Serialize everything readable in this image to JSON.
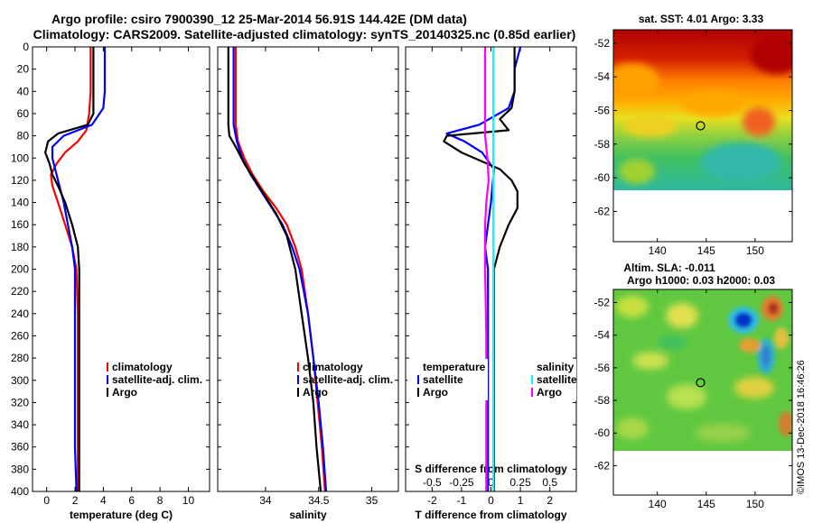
{
  "title_line1": "Argo profile: csiro 7900390_12 25-Mar-2014 56.91S 144.42E (DM data)",
  "title_line2": "Climatology: CARS2009. Satellite-adjusted climatology: synTS_20140325.nc (0.85d earlier)",
  "credit": "©IMOS 13-Dec-2018 16:46:26",
  "colors": {
    "climatology": "#ff0000",
    "satellite": "#0000ff",
    "argo": "#000000",
    "sat_salinity": "#00ffff",
    "argo_salinity": "#ff00ff"
  },
  "depth_ticks": [
    "0",
    "20",
    "40",
    "60",
    "80",
    "100",
    "120",
    "140",
    "160",
    "180",
    "200",
    "220",
    "240",
    "260",
    "280",
    "300",
    "320",
    "340",
    "360",
    "380",
    "400"
  ],
  "chart_data": [
    {
      "type": "line",
      "name": "temperature-panel",
      "xlabel": "temperature (deg C)",
      "ylabel": "depth",
      "xlim": [
        -1,
        11.5
      ],
      "ylim": [
        0,
        400
      ],
      "xticks": [
        "0",
        "2",
        "4",
        "6",
        "8",
        "10"
      ],
      "xtick_values": [
        0,
        2,
        4,
        6,
        8,
        10
      ],
      "legend": [
        "climatology",
        "satellite-adj. clim.",
        "Argo"
      ],
      "series": [
        {
          "name": "climatology",
          "color": "#ff0000",
          "points": [
            [
              3.1,
              0
            ],
            [
              3.1,
              20
            ],
            [
              3.1,
              40
            ],
            [
              3.0,
              60
            ],
            [
              2.8,
              75
            ],
            [
              2.2,
              85
            ],
            [
              1.3,
              95
            ],
            [
              0.7,
              105
            ],
            [
              0.3,
              115
            ],
            [
              0.4,
              125
            ],
            [
              0.8,
              140
            ],
            [
              1.3,
              160
            ],
            [
              1.8,
              180
            ],
            [
              2.1,
              200
            ],
            [
              2.2,
              240
            ],
            [
              2.2,
              300
            ],
            [
              2.2,
              360
            ],
            [
              2.2,
              400
            ]
          ]
        },
        {
          "name": "satellite-adj. clim.",
          "color": "#0000ff",
          "points": [
            [
              4.1,
              0
            ],
            [
              4.1,
              20
            ],
            [
              4.1,
              40
            ],
            [
              4.0,
              55
            ],
            [
              3.2,
              70
            ],
            [
              1.2,
              80
            ],
            [
              0.4,
              90
            ],
            [
              0.4,
              100
            ],
            [
              0.6,
              110
            ],
            [
              0.9,
              125
            ],
            [
              1.2,
              140
            ],
            [
              1.5,
              160
            ],
            [
              1.8,
              180
            ],
            [
              2.0,
              200
            ],
            [
              2.0,
              240
            ],
            [
              2.0,
              300
            ],
            [
              2.0,
              360
            ],
            [
              2.1,
              400
            ]
          ]
        },
        {
          "name": "Argo",
          "color": "#000000",
          "points": [
            [
              3.3,
              0
            ],
            [
              3.3,
              20
            ],
            [
              3.3,
              40
            ],
            [
              3.3,
              60
            ],
            [
              2.9,
              70
            ],
            [
              0.8,
              78
            ],
            [
              0.1,
              85
            ],
            [
              -0.1,
              95
            ],
            [
              0.2,
              105
            ],
            [
              0.4,
              115
            ],
            [
              0.8,
              125
            ],
            [
              1.3,
              140
            ],
            [
              1.8,
              160
            ],
            [
              2.2,
              180
            ],
            [
              2.3,
              200
            ],
            [
              2.3,
              240
            ],
            [
              2.3,
              300
            ],
            [
              2.3,
              360
            ],
            [
              2.3,
              400
            ]
          ]
        }
      ]
    },
    {
      "type": "line",
      "name": "salinity-panel",
      "xlabel": "salinity",
      "ylabel": "depth",
      "xlim": [
        33.55,
        35.25
      ],
      "ylim": [
        0,
        400
      ],
      "xticks": [
        "34",
        "34.5",
        "35"
      ],
      "xtick_values": [
        34,
        34.5,
        35
      ],
      "legend": [
        "climatology",
        "satellite-adj. clim.",
        "Argo"
      ],
      "series": [
        {
          "name": "climatology",
          "color": "#ff0000",
          "points": [
            [
              33.72,
              0
            ],
            [
              33.72,
              40
            ],
            [
              33.72,
              70
            ],
            [
              33.74,
              85
            ],
            [
              33.8,
              100
            ],
            [
              33.88,
              115
            ],
            [
              33.98,
              130
            ],
            [
              34.1,
              145
            ],
            [
              34.2,
              160
            ],
            [
              34.28,
              180
            ],
            [
              34.34,
              200
            ],
            [
              34.4,
              240
            ],
            [
              34.45,
              280
            ],
            [
              34.49,
              320
            ],
            [
              34.53,
              360
            ],
            [
              34.56,
              400
            ]
          ]
        },
        {
          "name": "satellite-adj. clim.",
          "color": "#0000ff",
          "points": [
            [
              33.7,
              0
            ],
            [
              33.7,
              40
            ],
            [
              33.7,
              70
            ],
            [
              33.73,
              85
            ],
            [
              33.78,
              100
            ],
            [
              33.86,
              115
            ],
            [
              33.96,
              130
            ],
            [
              34.06,
              145
            ],
            [
              34.16,
              160
            ],
            [
              34.25,
              180
            ],
            [
              34.32,
              200
            ],
            [
              34.4,
              240
            ],
            [
              34.45,
              280
            ],
            [
              34.5,
              320
            ],
            [
              34.54,
              360
            ],
            [
              34.57,
              400
            ]
          ]
        },
        {
          "name": "Argo",
          "color": "#000000",
          "points": [
            [
              33.65,
              0
            ],
            [
              33.65,
              40
            ],
            [
              33.65,
              70
            ],
            [
              33.66,
              80
            ],
            [
              33.72,
              90
            ],
            [
              33.8,
              105
            ],
            [
              33.9,
              120
            ],
            [
              34.0,
              135
            ],
            [
              34.1,
              150
            ],
            [
              34.2,
              170
            ],
            [
              34.28,
              200
            ],
            [
              34.34,
              240
            ],
            [
              34.4,
              280
            ],
            [
              34.45,
              320
            ],
            [
              34.48,
              360
            ],
            [
              34.52,
              400
            ]
          ]
        }
      ]
    },
    {
      "type": "line",
      "name": "difference-panel",
      "xlabel": "T difference from climatology",
      "x2label": "S difference from climatology",
      "ylabel": "depth",
      "xlim": [
        -2.9,
        2.9
      ],
      "ylim": [
        0,
        400
      ],
      "xticks": [
        "-2",
        "-1",
        "0",
        "1",
        "2"
      ],
      "xtick_values": [
        -2,
        -1,
        0,
        1,
        2
      ],
      "x2ticks": [
        "-0.5",
        "-0.25",
        "0",
        "0.25",
        "0.5"
      ],
      "x2tick_values": [
        -0.5,
        -0.25,
        0,
        0.25,
        0.5
      ],
      "legend_temperature_title": "temperature",
      "legend_salinity_title": "salinity",
      "legend_temperature": [
        "satellite",
        "Argo"
      ],
      "legend_salinity": [
        "satellite",
        "Argo"
      ],
      "series": [
        {
          "name": "temperature satellite",
          "color": "#0000ff",
          "axis": "T",
          "points": [
            [
              1.0,
              0
            ],
            [
              0.8,
              20
            ],
            [
              0.8,
              40
            ],
            [
              0.6,
              55
            ],
            [
              -0.4,
              70
            ],
            [
              -1.5,
              78
            ],
            [
              -0.9,
              85
            ],
            [
              -0.3,
              95
            ],
            [
              0.1,
              110
            ],
            [
              0.0,
              140
            ],
            [
              -0.1,
              160
            ],
            [
              -0.2,
              180
            ],
            [
              -0.1,
              200
            ],
            [
              -0.1,
              260
            ],
            [
              -0.1,
              320
            ],
            [
              -0.1,
              400
            ]
          ]
        },
        {
          "name": "temperature Argo",
          "color": "#000000",
          "axis": "T",
          "points": [
            [
              0.8,
              0
            ],
            [
              0.8,
              20
            ],
            [
              0.8,
              40
            ],
            [
              0.7,
              55
            ],
            [
              0.3,
              65
            ],
            [
              0.6,
              75
            ],
            [
              -1.5,
              80
            ],
            [
              -1.6,
              85
            ],
            [
              -1.0,
              95
            ],
            [
              0.3,
              110
            ],
            [
              0.7,
              120
            ],
            [
              0.9,
              130
            ],
            [
              0.9,
              145
            ],
            [
              0.6,
              160
            ],
            [
              0.3,
              180
            ],
            [
              0.1,
              200
            ],
            [
              0.1,
              260
            ],
            [
              0.1,
              320
            ],
            [
              0.1,
              400
            ]
          ]
        },
        {
          "name": "salinity satellite",
          "color": "#00ffff",
          "axis": "S",
          "points": [
            [
              0.02,
              0
            ],
            [
              0.02,
              100
            ],
            [
              0.02,
              200
            ],
            [
              0.02,
              300
            ],
            [
              0.02,
              400
            ]
          ]
        },
        {
          "name": "salinity Argo",
          "color": "#ff00ff",
          "axis": "S",
          "points": [
            [
              -0.05,
              0
            ],
            [
              -0.05,
              40
            ],
            [
              -0.05,
              80
            ],
            [
              -0.03,
              100
            ],
            [
              -0.02,
              120
            ],
            [
              -0.04,
              140
            ],
            [
              -0.05,
              160
            ],
            [
              -0.05,
              200
            ],
            [
              -0.04,
              260
            ],
            [
              -0.04,
              320
            ],
            [
              -0.04,
              360
            ],
            [
              -0.04,
              400
            ]
          ]
        }
      ]
    }
  ],
  "maps": [
    {
      "name": "sst-map",
      "title": "sat. SST: 4.01  Argo: 3.33",
      "xticks": [
        "140",
        "145",
        "150"
      ],
      "xtick_values": [
        140,
        145,
        150
      ],
      "yticks": [
        "-52",
        "-54",
        "-56",
        "-58",
        "-60",
        "-62"
      ],
      "ytick_values": [
        -52,
        -54,
        -56,
        -58,
        -60,
        -62
      ],
      "lon_range": [
        135.5,
        153.8
      ],
      "lat_range": [
        -63.8,
        -51.2
      ],
      "data_extent_lat": [
        -60,
        -51.2
      ],
      "argo_position": [
        144.42,
        -56.91
      ]
    },
    {
      "name": "sla-map",
      "title_line1": "Altim. SLA: -0.011",
      "title_line2": "Argo h1000: 0.03 h2000: 0.03",
      "xticks": [
        "140",
        "145",
        "150"
      ],
      "xtick_values": [
        140,
        145,
        150
      ],
      "yticks": [
        "-52",
        "-54",
        "-56",
        "-58",
        "-60",
        "-62"
      ],
      "ytick_values": [
        -52,
        -54,
        -56,
        -58,
        -60,
        -62
      ],
      "lon_range": [
        135.5,
        153.8
      ],
      "lat_range": [
        -63.8,
        -51.2
      ],
      "data_extent_lat": [
        -60,
        -51.2
      ],
      "argo_position": [
        144.42,
        -56.91
      ]
    }
  ]
}
